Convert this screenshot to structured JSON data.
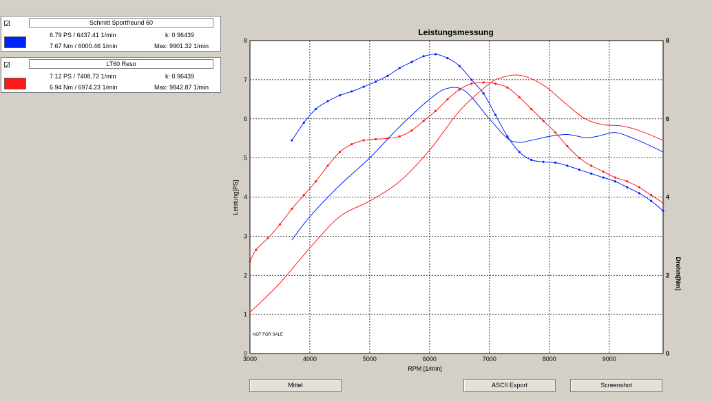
{
  "legend": [
    {
      "checkbox": "✓",
      "name": "Schmitt Sportfreund 60",
      "color": "#0022ff",
      "power_line": "6.79 PS / 6437.41 1/min",
      "torque_line": "7.67 Nm / 6000.46 1/min",
      "k_line": "k: 0.96439",
      "max_line": "Max: 9901.32 1/min"
    },
    {
      "checkbox": "✓",
      "name": "LT60 Reso",
      "color": "#ff1a1a",
      "power_line": "7.12 PS / 7408.72 1/min",
      "torque_line": "6.94 Nm / 6974.23 1/min",
      "k_line": "k: 0.96439",
      "max_line": "Max: 9842.87 1/min"
    }
  ],
  "buttons": {
    "mittel": "Mittel",
    "ascii_export": "ASCII Export",
    "screenshot": "Screenshot"
  },
  "chart_data": {
    "type": "line",
    "title": "Leistungsmessung",
    "xlabel": "RPM [1/min]",
    "ylabel": "Leistung[PS]",
    "y2label": "Drehm[Nm]",
    "watermark": "NOT FOR SALE",
    "xlim": [
      3000,
      9900
    ],
    "ylim": [
      0,
      8
    ],
    "y2lim": [
      0,
      8
    ],
    "x_ticks": [
      3000,
      4000,
      5000,
      6000,
      7000,
      8000,
      9000
    ],
    "y_ticks": [
      0,
      1,
      2,
      3,
      4,
      5,
      6,
      7,
      8
    ],
    "y2_ticks": [
      0,
      2,
      4,
      6,
      8
    ],
    "grid": true,
    "series": [
      {
        "name": "Schmitt Sportfreund 60",
        "kind": "power",
        "color": "#0022ff",
        "x": [
          3700,
          4000,
          4500,
          5000,
          5500,
          6000,
          6300,
          6600,
          7000,
          7300,
          7500,
          7700,
          8000,
          8300,
          8600,
          8800,
          9100,
          9400,
          9700,
          9900
        ],
        "y": [
          2.9,
          3.5,
          4.3,
          5.0,
          5.8,
          6.5,
          6.78,
          6.7,
          6.0,
          5.5,
          5.4,
          5.45,
          5.55,
          5.6,
          5.52,
          5.55,
          5.65,
          5.5,
          5.3,
          5.15
        ]
      },
      {
        "name": "LT60 Reso",
        "kind": "power",
        "color": "#ff1a1a",
        "x": [
          3000,
          3500,
          4000,
          4500,
          5000,
          5500,
          6000,
          6500,
          7000,
          7200,
          7400,
          7600,
          7800,
          8000,
          8300,
          8600,
          8900,
          9200,
          9500,
          9900
        ],
        "y": [
          1.05,
          1.8,
          2.7,
          3.5,
          3.9,
          4.4,
          5.2,
          6.2,
          6.9,
          7.05,
          7.12,
          7.08,
          6.95,
          6.75,
          6.35,
          6.0,
          5.85,
          5.82,
          5.7,
          5.45
        ]
      },
      {
        "name": "Schmitt Sportfreund 60",
        "kind": "torque",
        "color": "#0022ff",
        "x": [
          3700,
          3900,
          4100,
          4300,
          4500,
          4700,
          4900,
          5100,
          5300,
          5500,
          5700,
          5900,
          6100,
          6300,
          6500,
          6700,
          6900,
          7100,
          7300,
          7500,
          7700,
          7900,
          8100,
          8300,
          8500,
          8700,
          8900,
          9100,
          9300,
          9500,
          9700,
          9900
        ],
        "y": [
          5.45,
          5.9,
          6.25,
          6.45,
          6.6,
          6.7,
          6.82,
          6.95,
          7.1,
          7.3,
          7.45,
          7.6,
          7.65,
          7.55,
          7.35,
          7.0,
          6.65,
          6.1,
          5.55,
          5.15,
          4.95,
          4.9,
          4.88,
          4.8,
          4.7,
          4.6,
          4.5,
          4.4,
          4.25,
          4.1,
          3.9,
          3.65
        ]
      },
      {
        "name": "LT60 Reso",
        "kind": "torque",
        "color": "#ff1a1a",
        "x": [
          3000,
          3100,
          3300,
          3500,
          3700,
          3900,
          4100,
          4300,
          4500,
          4700,
          4900,
          5100,
          5300,
          5500,
          5700,
          5900,
          6100,
          6300,
          6500,
          6700,
          6900,
          7100,
          7300,
          7500,
          7700,
          7900,
          8100,
          8300,
          8500,
          8700,
          8900,
          9100,
          9300,
          9500,
          9700,
          9900
        ],
        "y": [
          2.35,
          2.65,
          2.95,
          3.3,
          3.7,
          4.05,
          4.4,
          4.8,
          5.15,
          5.35,
          5.45,
          5.48,
          5.5,
          5.55,
          5.7,
          5.95,
          6.2,
          6.5,
          6.75,
          6.9,
          6.93,
          6.9,
          6.8,
          6.55,
          6.25,
          5.95,
          5.65,
          5.3,
          5.0,
          4.8,
          4.65,
          4.5,
          4.4,
          4.25,
          4.05,
          3.85
        ]
      }
    ]
  }
}
